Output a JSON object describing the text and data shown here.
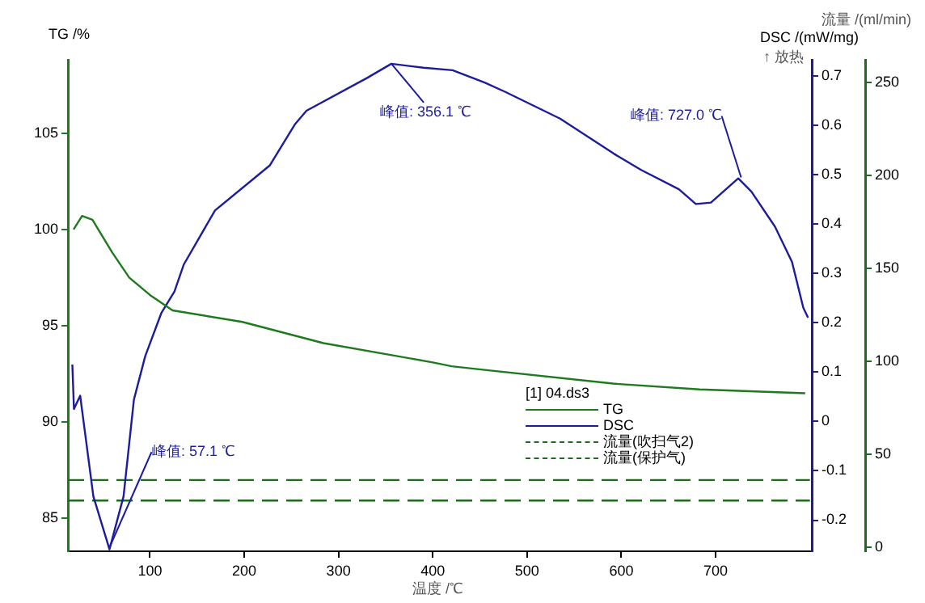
{
  "chart_data": {
    "type": "line",
    "xlabel": "温度 /℃",
    "ylabel": "TG /%",
    "y2label": "DSC /(mW/mg)",
    "y3label": "流量 /(ml/min)",
    "legend_title": "[1] 04.ds3",
    "legend": "bottom right",
    "grid": false,
    "marker": "none",
    "xlim": [
      13,
      802
    ],
    "xticks": [
      100,
      200,
      300,
      400,
      500,
      600,
      700
    ],
    "ylim": [
      83.3,
      108.8
    ],
    "yticks": [
      85,
      90,
      95,
      100,
      105
    ],
    "y2lim": [
      -0.263,
      0.732
    ],
    "y2ticks": [
      -0.2,
      -0.1,
      0.0,
      0.1,
      0.2,
      0.3,
      0.4,
      0.5,
      0.6,
      0.7
    ],
    "y3lim": [
      -2.3,
      262
    ],
    "y3ticks": [
      0,
      50,
      100,
      150,
      200,
      250
    ],
    "annotations": [
      "↑ 放热",
      {
        "text": "峰值: 57.1 ℃",
        "x": 57.1,
        "y": 83.5
      },
      {
        "text": "峰值: 356.1 ℃",
        "x": 356.1,
        "y": 108.6
      },
      {
        "text": "峰值: 727.0 ℃",
        "x": 727.0,
        "y": 102.7
      }
    ],
    "series": [
      {
        "name": "TG",
        "color": "#1e7a1e",
        "line_style": "solid",
        "x": [
          19,
          28,
          39,
          60,
          78,
          100,
          124,
          198,
          284,
          400,
          420,
          457,
          591,
          683,
          795
        ],
        "values": [
          100.0,
          100.7,
          100.5,
          98.8,
          97.5,
          96.6,
          95.8,
          95.2,
          94.1,
          93.1,
          92.9,
          92.7,
          92.0,
          91.7,
          91.5
        ]
      },
      {
        "name": "DSC",
        "color": "#1c1c9c",
        "axis": "y2",
        "line_style": "solid",
        "x": [
          17.7,
          19.4,
          26,
          40,
          57.1,
          72,
          83,
          95,
          112,
          126,
          136,
          169,
          227,
          254,
          266,
          330,
          356.1,
          390,
          421,
          455,
          477,
          535,
          592,
          621,
          661,
          679,
          695,
          724,
          738,
          763,
          781,
          793,
          798
        ],
        "values": [
          0.115,
          0.025,
          0.052,
          -0.152,
          -0.259,
          -0.152,
          0.044,
          0.132,
          0.219,
          0.263,
          0.318,
          0.427,
          0.518,
          0.602,
          0.629,
          0.695,
          0.724,
          0.716,
          0.711,
          0.686,
          0.667,
          0.613,
          0.542,
          0.509,
          0.47,
          0.44,
          0.443,
          0.492,
          0.465,
          0.394,
          0.323,
          0.23,
          0.21
        ]
      },
      {
        "name": "流量(吹扫气2)",
        "color": "#1e6b1e",
        "axis": "y3",
        "line_style": "dashed",
        "x": [
          13,
          800
        ],
        "values": [
          36,
          36
        ]
      },
      {
        "name": "流量(保护气)",
        "color": "#1e6b1e",
        "axis": "y3",
        "line_style": "dashed",
        "x": [
          13,
          800
        ],
        "values": [
          25,
          25
        ]
      }
    ]
  }
}
